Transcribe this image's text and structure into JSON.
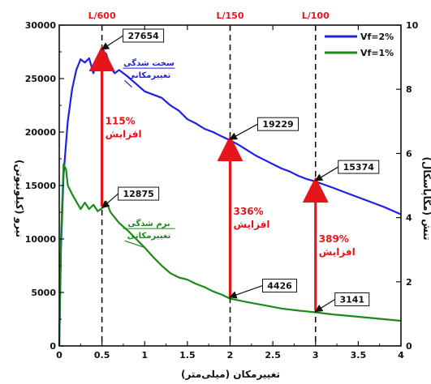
{
  "chart_data": {
    "type": "line",
    "xlabel": "تغییرمکان (میلی‌متر)",
    "ylabel": "نیرو (کیلونیوتن)",
    "y2label": "تنش (مگاپاسکال)",
    "xlim": [
      0,
      4
    ],
    "ylim": [
      0,
      30000
    ],
    "y2lim": [
      0,
      10
    ],
    "x_ticks": [
      "0",
      "0.5",
      "1",
      "1.5",
      "2",
      "2.5",
      "3",
      "3.5",
      "4"
    ],
    "y_ticks": [
      "0",
      "5000",
      "10000",
      "15000",
      "20000",
      "25000",
      "30000"
    ],
    "y2_ticks": [
      "0",
      "2",
      "4",
      "6",
      "8",
      "10"
    ],
    "top_markers": [
      {
        "label": "L/600",
        "x": 0.5
      },
      {
        "label": "L/150",
        "x": 2
      },
      {
        "label": "L/100",
        "x": 3
      }
    ],
    "legend": {
      "position": "top-right"
    },
    "series": [
      {
        "name": "Vf=2%",
        "color": "#1f1fe6",
        "points": [
          [
            0,
            0
          ],
          [
            0.02,
            9000
          ],
          [
            0.05,
            16000
          ],
          [
            0.1,
            21000
          ],
          [
            0.15,
            24000
          ],
          [
            0.2,
            25800
          ],
          [
            0.25,
            26800
          ],
          [
            0.3,
            26500
          ],
          [
            0.35,
            26900
          ],
          [
            0.4,
            25500
          ],
          [
            0.45,
            27000
          ],
          [
            0.5,
            27654
          ],
          [
            0.55,
            27300
          ],
          [
            0.6,
            26000
          ],
          [
            0.65,
            25500
          ],
          [
            0.7,
            25800
          ],
          [
            0.8,
            25200
          ],
          [
            0.9,
            24500
          ],
          [
            1.0,
            23800
          ],
          [
            1.1,
            23500
          ],
          [
            1.2,
            23200
          ],
          [
            1.3,
            22500
          ],
          [
            1.4,
            22000
          ],
          [
            1.5,
            21200
          ],
          [
            1.6,
            20800
          ],
          [
            1.7,
            20300
          ],
          [
            1.8,
            20000
          ],
          [
            1.9,
            19600
          ],
          [
            2.0,
            19229
          ],
          [
            2.1,
            18800
          ],
          [
            2.2,
            18300
          ],
          [
            2.3,
            17800
          ],
          [
            2.4,
            17400
          ],
          [
            2.5,
            17000
          ],
          [
            2.6,
            16600
          ],
          [
            2.7,
            16300
          ],
          [
            2.8,
            15900
          ],
          [
            2.9,
            15600
          ],
          [
            3.0,
            15374
          ],
          [
            3.2,
            14800
          ],
          [
            3.4,
            14200
          ],
          [
            3.6,
            13600
          ],
          [
            3.8,
            13000
          ],
          [
            4.0,
            12300
          ]
        ]
      },
      {
        "name": "Vf=1%",
        "color": "#1a8a1a",
        "points": [
          [
            0,
            0
          ],
          [
            0.02,
            10000
          ],
          [
            0.05,
            17000
          ],
          [
            0.08,
            16500
          ],
          [
            0.1,
            15000
          ],
          [
            0.15,
            14200
          ],
          [
            0.2,
            13500
          ],
          [
            0.25,
            12800
          ],
          [
            0.3,
            13400
          ],
          [
            0.35,
            12800
          ],
          [
            0.4,
            13200
          ],
          [
            0.45,
            12600
          ],
          [
            0.5,
            12875
          ],
          [
            0.55,
            13500
          ],
          [
            0.6,
            12500
          ],
          [
            0.7,
            11500
          ],
          [
            0.8,
            10800
          ],
          [
            0.9,
            10000
          ],
          [
            1.0,
            9200
          ],
          [
            1.1,
            8300
          ],
          [
            1.2,
            7500
          ],
          [
            1.3,
            6800
          ],
          [
            1.4,
            6400
          ],
          [
            1.5,
            6200
          ],
          [
            1.6,
            5800
          ],
          [
            1.7,
            5500
          ],
          [
            1.8,
            5100
          ],
          [
            1.9,
            4800
          ],
          [
            2.0,
            4426
          ],
          [
            2.2,
            4100
          ],
          [
            2.4,
            3800
          ],
          [
            2.6,
            3500
          ],
          [
            2.8,
            3300
          ],
          [
            3.0,
            3141
          ],
          [
            3.2,
            2950
          ],
          [
            3.4,
            2800
          ],
          [
            3.6,
            2650
          ],
          [
            3.8,
            2500
          ],
          [
            4.0,
            2350
          ]
        ]
      }
    ],
    "callouts": [
      {
        "text": "27654",
        "x": 0.5,
        "y": 27654
      },
      {
        "text": "19229",
        "x": 2.0,
        "y": 19229
      },
      {
        "text": "15374",
        "x": 3.0,
        "y": 15374
      },
      {
        "text": "12875",
        "x": 0.5,
        "y": 12875
      },
      {
        "text": "4426",
        "x": 2.0,
        "y": 4426
      },
      {
        "text": "3141",
        "x": 3.0,
        "y": 3141
      }
    ],
    "increase_arrows": [
      {
        "x": 0.5,
        "from": 12875,
        "to": 27654,
        "pct": "115%",
        "word": "افزایش"
      },
      {
        "x": 2.0,
        "from": 4426,
        "to": 19229,
        "pct": "336%",
        "word": "افزایش"
      },
      {
        "x": 3.0,
        "from": 3141,
        "to": 15374,
        "pct": "389%",
        "word": "افزایش"
      }
    ],
    "annotations": [
      {
        "line1": "سخت شدگی",
        "line2": "تغییرمکانی",
        "color": "#1f1fe6"
      },
      {
        "line1": "نرم شدگی",
        "line2": "تغییرمکانی",
        "color": "#1a8a1a"
      }
    ]
  }
}
